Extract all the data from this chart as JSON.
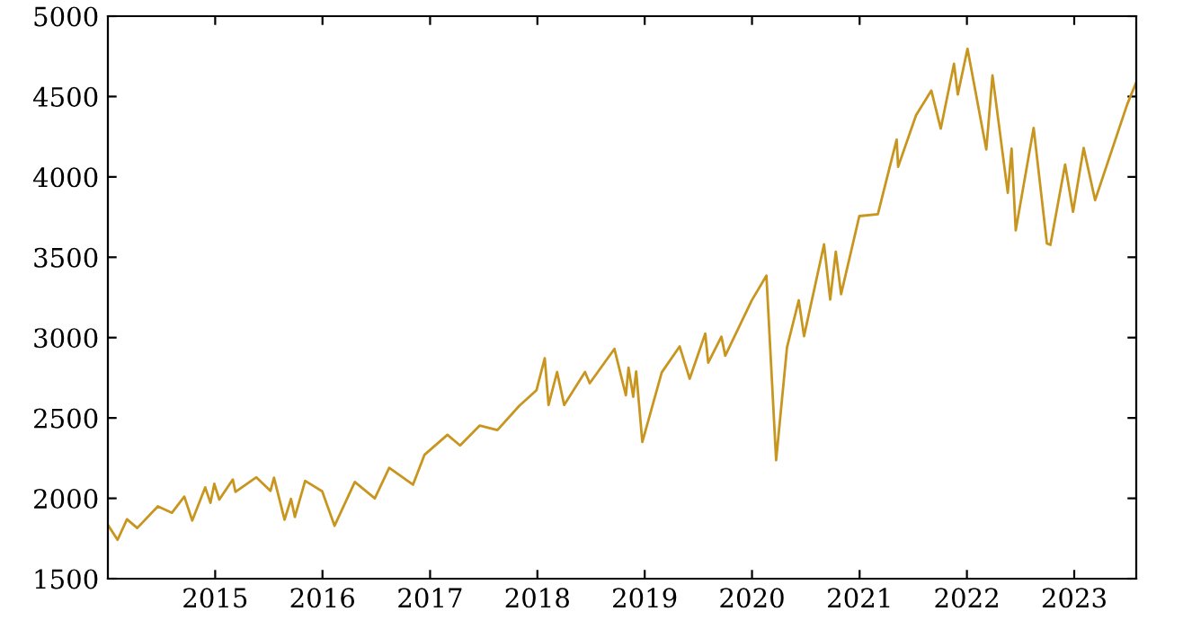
{
  "chart_data": {
    "type": "line",
    "color": "#c8961e",
    "grid": false,
    "marker": "none",
    "line_style": "solid",
    "legend": false,
    "x": [
      "2014-01-02",
      "2014-02-03",
      "2014-03-07",
      "2014-04-11",
      "2014-06-20",
      "2014-08-07",
      "2014-09-18",
      "2014-10-15",
      "2014-11-28",
      "2014-12-16",
      "2014-12-29",
      "2015-01-15",
      "2015-03-02",
      "2015-03-11",
      "2015-05-21",
      "2015-07-08",
      "2015-07-20",
      "2015-08-25",
      "2015-09-16",
      "2015-09-29",
      "2015-11-03",
      "2015-12-31",
      "2016-02-11",
      "2016-04-20",
      "2016-06-27",
      "2016-08-15",
      "2016-11-04",
      "2016-12-13",
      "2017-03-01",
      "2017-04-13",
      "2017-06-19",
      "2017-08-18",
      "2017-10-31",
      "2017-12-29",
      "2018-01-26",
      "2018-02-08",
      "2018-03-09",
      "2018-04-02",
      "2018-06-12",
      "2018-06-28",
      "2018-09-20",
      "2018-10-29",
      "2018-11-07",
      "2018-11-23",
      "2018-12-03",
      "2018-12-24",
      "2019-02-28",
      "2019-04-30",
      "2019-06-03",
      "2019-07-26",
      "2019-08-05",
      "2019-09-19",
      "2019-10-02",
      "2019-12-31",
      "2020-02-19",
      "2020-03-23",
      "2020-04-29",
      "2020-06-08",
      "2020-06-26",
      "2020-09-02",
      "2020-09-23",
      "2020-10-12",
      "2020-10-30",
      "2020-12-31",
      "2021-03-04",
      "2021-05-07",
      "2021-05-12",
      "2021-07-12",
      "2021-09-02",
      "2021-10-04",
      "2021-11-18",
      "2021-12-01",
      "2022-01-03",
      "2022-03-08",
      "2022-03-29",
      "2022-05-20",
      "2022-06-02",
      "2022-06-16",
      "2022-08-16",
      "2022-09-30",
      "2022-10-12",
      "2022-12-01",
      "2022-12-28",
      "2023-02-02",
      "2023-03-13",
      "2023-06-30",
      "2023-07-31"
    ],
    "values": [
      1832,
      1742,
      1870,
      1815,
      1950,
      1910,
      2011,
      1862,
      2068,
      1972,
      2090,
      1992,
      2117,
      2040,
      2131,
      2046,
      2128,
      1867,
      1996,
      1884,
      2109,
      2044,
      1829,
      2102,
      2000,
      2190,
      2085,
      2271,
      2395,
      2329,
      2453,
      2425,
      2575,
      2673,
      2872,
      2581,
      2786,
      2581,
      2786,
      2716,
      2930,
      2641,
      2813,
      2632,
      2790,
      2351,
      2784,
      2945,
      2744,
      3025,
      2844,
      3006,
      2887,
      3231,
      3386,
      2237,
      2939,
      3232,
      3009,
      3580,
      3237,
      3534,
      3270,
      3756,
      3768,
      4232,
      4063,
      4384,
      4537,
      4300,
      4704,
      4513,
      4797,
      4170,
      4632,
      3901,
      4176,
      3667,
      4305,
      3586,
      3577,
      4077,
      3783,
      4180,
      3855,
      4450,
      4589
    ],
    "xlim": [
      "2014-01-01",
      "2023-07-31"
    ],
    "xticks": [
      {
        "value": "2015-01-01",
        "label": "2015"
      },
      {
        "value": "2016-01-01",
        "label": "2016"
      },
      {
        "value": "2017-01-01",
        "label": "2017"
      },
      {
        "value": "2018-01-01",
        "label": "2018"
      },
      {
        "value": "2019-01-01",
        "label": "2019"
      },
      {
        "value": "2020-01-01",
        "label": "2020"
      },
      {
        "value": "2021-01-01",
        "label": "2021"
      },
      {
        "value": "2022-01-01",
        "label": "2022"
      },
      {
        "value": "2023-01-01",
        "label": "2023"
      }
    ],
    "ylim": [
      1500,
      5000
    ],
    "yticks": [
      1500,
      2000,
      2500,
      3000,
      3500,
      4000,
      4500,
      5000
    ]
  }
}
